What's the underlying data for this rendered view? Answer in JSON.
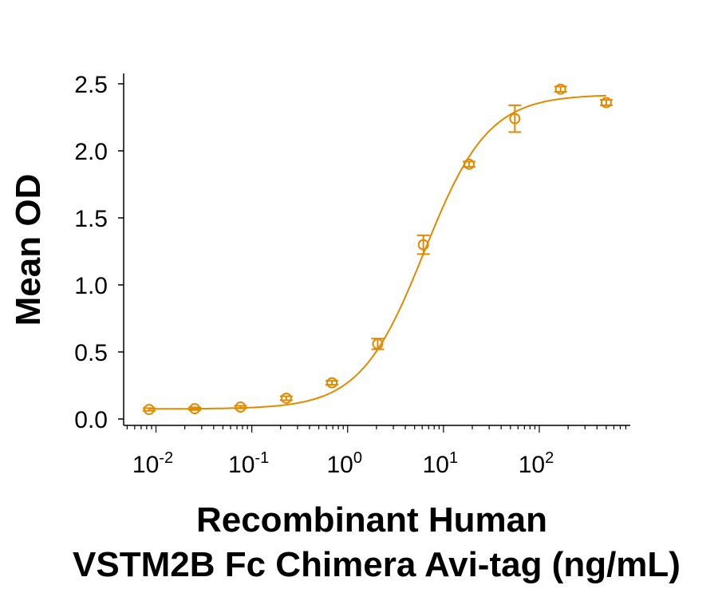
{
  "chart_data": {
    "type": "scatter",
    "title": "",
    "xlabel_line1": "Recombinant Human",
    "xlabel_line2": "VSTM2B Fc Chimera Avi-tag (ng/mL)",
    "ylabel": "Mean OD",
    "xscale": "log",
    "xlim": [
      0.0046,
      890
    ],
    "ylim": [
      0,
      2.5
    ],
    "x_ticks": [
      {
        "value": 0.01,
        "base": "10",
        "exp": "-2"
      },
      {
        "value": 0.1,
        "base": "10",
        "exp": "-1"
      },
      {
        "value": 1,
        "base": "10",
        "exp": "0"
      },
      {
        "value": 10,
        "base": "10",
        "exp": "1"
      },
      {
        "value": 100,
        "base": "10",
        "exp": "2"
      }
    ],
    "y_ticks": [
      "0.0",
      "0.5",
      "1.0",
      "1.5",
      "2.0",
      "2.5"
    ],
    "grid": false,
    "color": "#E08A00",
    "series": [
      {
        "x": [
          0.00847,
          0.0254,
          0.0762,
          0.229,
          0.686,
          2.06,
          6.17,
          18.5,
          55.6,
          166.7,
          500
        ],
        "y": [
          0.071,
          0.077,
          0.089,
          0.155,
          0.27,
          0.56,
          1.3,
          1.9,
          2.24,
          2.46,
          2.36
        ],
        "error": [
          0.01,
          0.01,
          0.01,
          0.015,
          0.015,
          0.04,
          0.07,
          0.02,
          0.1,
          0.02,
          0.02
        ]
      }
    ],
    "fit": {
      "type": "4PL",
      "bottom": 0.075,
      "top": 2.42,
      "ec50": 6.3,
      "hill": 1.3
    }
  }
}
